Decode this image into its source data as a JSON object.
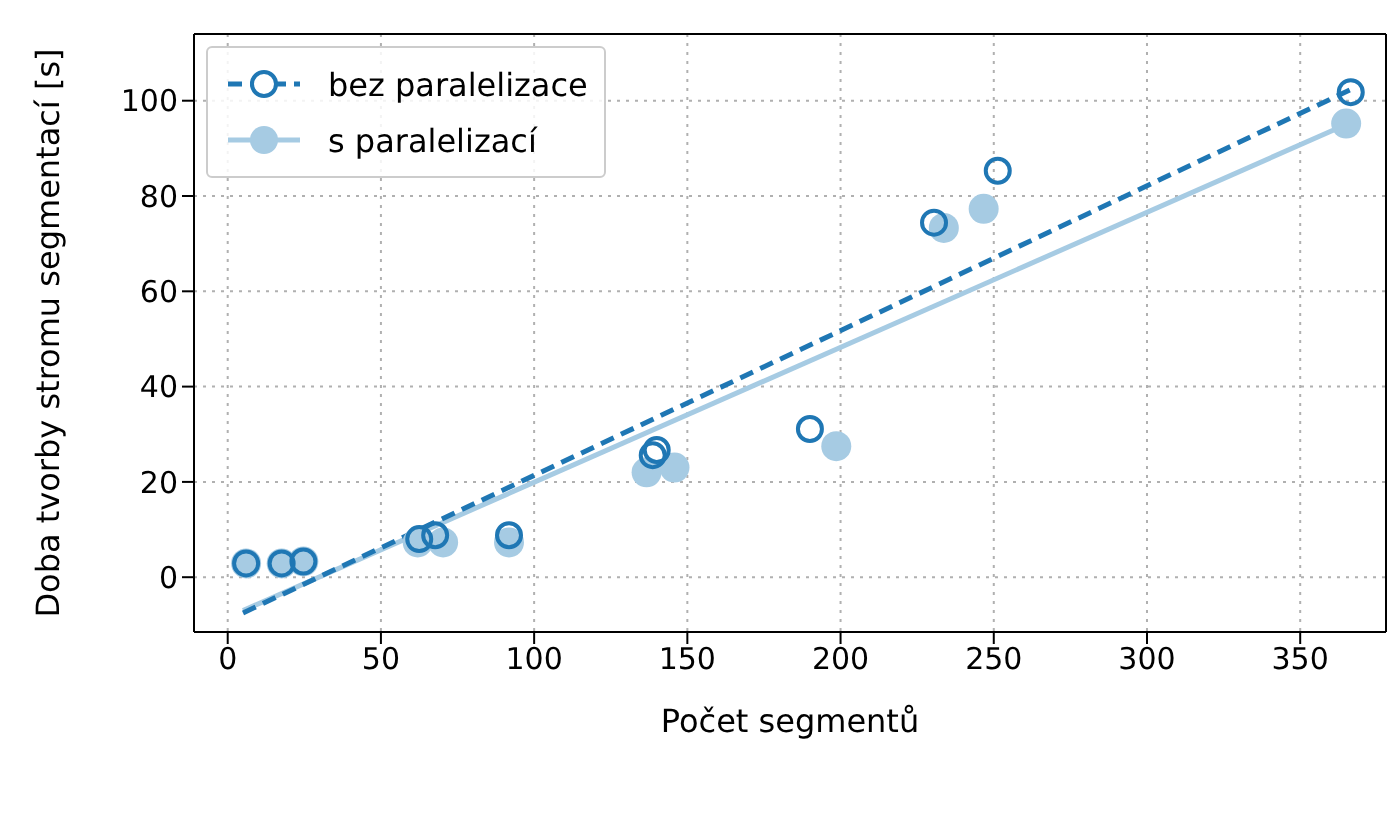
{
  "chart_data": {
    "type": "scatter",
    "xlabel": "Počet segmentů",
    "ylabel": "Doba tvorby stromu segmentací [s]",
    "xlim": [
      -11,
      378
    ],
    "ylim": [
      -11.5,
      114
    ],
    "xticks": [
      0,
      50,
      100,
      150,
      200,
      250,
      300,
      350
    ],
    "yticks": [
      0,
      20,
      40,
      60,
      80,
      100
    ],
    "grid": true,
    "legend": "top left",
    "series": [
      {
        "name": "bez paralelizace",
        "marker": "circle",
        "color": "#1f77b4",
        "line_style": "dashed",
        "x": [
          6,
          17.6,
          24.7,
          62.5,
          67.7,
          91.8,
          138.7,
          140,
          190,
          230.5,
          251.3,
          366.5
        ],
        "values": [
          2.9,
          2.9,
          3.3,
          8,
          8.8,
          8.8,
          25.6,
          26.7,
          31.1,
          74.4,
          85.3,
          101.8
        ]
      },
      {
        "name": "s paralelizací",
        "marker": "circle",
        "color": "#a6cbe3",
        "line_style": "solid",
        "x": [
          6,
          17.6,
          24.7,
          62,
          70.3,
          91.8,
          136.7,
          145.8,
          198.6,
          233.7,
          246.7,
          365
        ],
        "values": [
          2.9,
          2.9,
          3.3,
          7.3,
          7.3,
          7.3,
          22,
          23,
          27.5,
          73.3,
          77.3,
          95.2
        ]
      },
      {
        "type": "line",
        "color": "#1f77b4",
        "line_style": "dashed",
        "x": [
          5,
          367
        ],
        "values": [
          -7.5,
          102.5
        ]
      },
      {
        "type": "line",
        "color": "#a6cbe3",
        "line_style": "solid",
        "x": [
          5,
          365
        ],
        "values": [
          -7,
          95
        ]
      }
    ]
  }
}
